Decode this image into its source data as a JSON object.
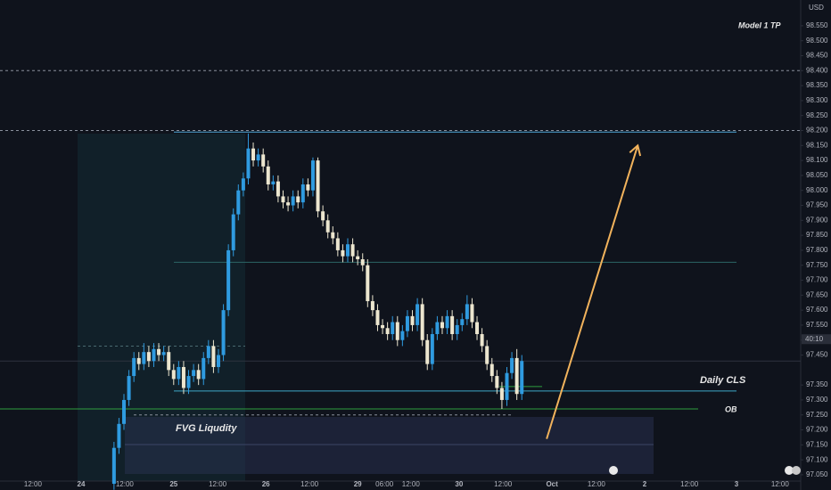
{
  "chart_data": {
    "type": "candlestick",
    "currency": "USD",
    "countdown": "40:10",
    "up_color": "#2f9be0",
    "down_color": "#ece6cf",
    "xlim": [
      -21.2,
      188.1
    ],
    "ylim": [
      97.029,
      98.636
    ],
    "xticks": [
      {
        "value": -12.6,
        "label": "12:00"
      },
      {
        "value": 0,
        "label": "24"
      },
      {
        "value": 11.4,
        "label": "12:00"
      },
      {
        "value": 24.2,
        "label": "25"
      },
      {
        "value": 35.7,
        "label": "12:00"
      },
      {
        "value": 48.3,
        "label": "26"
      },
      {
        "value": 59.7,
        "label": "12:00"
      },
      {
        "value": 72.3,
        "label": "29"
      },
      {
        "value": 79.3,
        "label": "06:00"
      },
      {
        "value": 86.2,
        "label": "12:00"
      },
      {
        "value": 98.8,
        "label": "30"
      },
      {
        "value": 110.3,
        "label": "12:00"
      },
      {
        "value": 123.1,
        "label": "Oct"
      },
      {
        "value": 134.7,
        "label": "12:00"
      },
      {
        "value": 147.3,
        "label": "2"
      },
      {
        "value": 159,
        "label": "12:00"
      },
      {
        "value": 171.3,
        "label": "3"
      },
      {
        "value": 182.7,
        "label": "12:00"
      }
    ],
    "yticks": [
      {
        "value": 97.05,
        "label": "97.050"
      },
      {
        "value": 97.1,
        "label": "97.100"
      },
      {
        "value": 97.15,
        "label": "97.150"
      },
      {
        "value": 97.2,
        "label": "97.200"
      },
      {
        "value": 97.25,
        "label": "97.250"
      },
      {
        "value": 97.3,
        "label": "97.300"
      },
      {
        "value": 97.35,
        "label": "97.350"
      },
      {
        "value": 97.45,
        "label": "97.450"
      },
      {
        "value": 97.5,
        "label": "97.500"
      },
      {
        "value": 97.55,
        "label": "97.550"
      },
      {
        "value": 97.6,
        "label": "97.600"
      },
      {
        "value": 97.65,
        "label": "97.650"
      },
      {
        "value": 97.7,
        "label": "97.700"
      },
      {
        "value": 97.75,
        "label": "97.750"
      },
      {
        "value": 97.8,
        "label": "97.800"
      },
      {
        "value": 97.85,
        "label": "97.850"
      },
      {
        "value": 97.9,
        "label": "97.900"
      },
      {
        "value": 97.95,
        "label": "97.950"
      },
      {
        "value": 98,
        "label": "98.000"
      },
      {
        "value": 98.05,
        "label": "98.050"
      },
      {
        "value": 98.1,
        "label": "98.100"
      },
      {
        "value": 98.15,
        "label": "98.150"
      },
      {
        "value": 98.2,
        "label": "98.200"
      },
      {
        "value": 98.25,
        "label": "98.250"
      },
      {
        "value": 98.3,
        "label": "98.300"
      },
      {
        "value": 98.35,
        "label": "98.350"
      },
      {
        "value": 98.4,
        "label": "98.400"
      },
      {
        "value": 98.45,
        "label": "98.450"
      },
      {
        "value": 98.5,
        "label": "98.500"
      },
      {
        "value": 98.55,
        "label": "98.550"
      }
    ],
    "x": [
      8.6,
      9.9,
      11.2,
      12.5,
      13.8,
      15.1,
      16.4,
      17.7,
      19,
      20.3,
      21.6,
      22.9,
      24.2,
      25.5,
      26.8,
      28.1,
      29.4,
      30.7,
      32,
      33.3,
      34.6,
      35.9,
      37.2,
      38.5,
      39.8,
      41.1,
      42.4,
      43.7,
      45,
      46.3,
      47.6,
      48.9,
      50.2,
      51.5,
      52.8,
      54.1,
      55.4,
      56.7,
      58,
      59.3,
      60.6,
      61.9,
      63.2,
      64.5,
      65.8,
      67.1,
      68.4,
      69.7,
      71,
      72.3,
      73.6,
      74.9,
      76.2,
      77.5,
      78.8,
      80.1,
      81.4,
      82.7,
      84,
      85.3,
      86.6,
      87.9,
      89.2,
      90.5,
      91.8,
      93.1,
      94.4,
      95.7,
      97,
      98.3,
      99.6,
      100.9,
      102.2,
      103.5,
      104.8,
      106.1,
      107.4,
      108.7,
      110,
      111.3,
      112.6,
      113.9,
      115.2
    ],
    "open": [
      97.02,
      97.14,
      97.22,
      97.3,
      97.38,
      97.44,
      97.42,
      97.46,
      97.43,
      97.47,
      97.45,
      97.46,
      97.4,
      97.37,
      97.41,
      97.34,
      97.38,
      97.4,
      97.37,
      97.44,
      97.48,
      97.41,
      97.45,
      97.6,
      97.8,
      97.92,
      98.0,
      98.04,
      98.14,
      98.1,
      98.12,
      98.08,
      98.02,
      98.03,
      97.98,
      97.96,
      97.95,
      97.98,
      97.96,
      98.02,
      98.0,
      98.1,
      97.93,
      97.9,
      97.86,
      97.84,
      97.8,
      97.78,
      97.82,
      97.78,
      97.77,
      97.75,
      97.63,
      97.6,
      97.55,
      97.54,
      97.52,
      97.56,
      97.5,
      97.53,
      97.58,
      97.55,
      97.62,
      97.5,
      97.42,
      97.52,
      97.56,
      97.54,
      97.58,
      97.52,
      97.55,
      97.57,
      97.62,
      97.56,
      97.52,
      97.48,
      97.42,
      97.38,
      97.34,
      97.3,
      97.39,
      97.44,
      97.32
    ],
    "high": [
      97.16,
      97.24,
      97.32,
      97.4,
      97.46,
      97.46,
      97.49,
      97.48,
      97.49,
      97.49,
      97.48,
      97.48,
      97.42,
      97.43,
      97.43,
      97.4,
      97.42,
      97.42,
      97.46,
      97.5,
      97.5,
      97.47,
      97.62,
      97.82,
      97.94,
      98.02,
      98.06,
      98.19,
      98.16,
      98.14,
      98.14,
      98.1,
      98.05,
      98.05,
      98.0,
      97.98,
      98.0,
      98.0,
      98.04,
      98.04,
      98.11,
      98.11,
      97.95,
      97.92,
      97.88,
      97.86,
      97.82,
      97.84,
      97.84,
      97.8,
      97.79,
      97.77,
      97.65,
      97.62,
      97.57,
      97.56,
      97.58,
      97.58,
      97.55,
      97.6,
      97.6,
      97.64,
      97.64,
      97.52,
      97.54,
      97.58,
      97.58,
      97.6,
      97.6,
      97.57,
      97.59,
      97.65,
      97.64,
      97.58,
      97.54,
      97.5,
      97.44,
      97.4,
      97.36,
      97.41,
      97.46,
      97.47,
      97.45
    ],
    "low": [
      97.0,
      97.12,
      97.2,
      97.28,
      97.36,
      97.4,
      97.4,
      97.41,
      97.41,
      97.43,
      97.43,
      97.38,
      97.35,
      97.35,
      97.32,
      97.32,
      97.36,
      97.35,
      97.35,
      97.42,
      97.39,
      97.39,
      97.43,
      97.58,
      97.78,
      97.9,
      97.98,
      98.02,
      98.08,
      98.08,
      98.06,
      98.0,
      98.0,
      97.96,
      97.94,
      97.93,
      97.93,
      97.94,
      97.94,
      97.98,
      97.98,
      97.91,
      97.88,
      97.84,
      97.82,
      97.78,
      97.76,
      97.76,
      97.76,
      97.75,
      97.73,
      97.61,
      97.58,
      97.53,
      97.52,
      97.5,
      97.5,
      97.48,
      97.48,
      97.51,
      97.53,
      97.53,
      97.48,
      97.4,
      97.4,
      97.5,
      97.52,
      97.52,
      97.5,
      97.5,
      97.53,
      97.55,
      97.54,
      97.5,
      97.46,
      97.4,
      97.36,
      97.32,
      97.27,
      97.28,
      97.37,
      97.3,
      97.3
    ],
    "close": [
      97.14,
      97.22,
      97.3,
      97.38,
      97.44,
      97.42,
      97.46,
      97.43,
      97.47,
      97.45,
      97.46,
      97.4,
      97.37,
      97.41,
      97.34,
      97.38,
      97.4,
      97.37,
      97.44,
      97.48,
      97.41,
      97.45,
      97.6,
      97.8,
      97.92,
      98.0,
      98.04,
      98.14,
      98.1,
      98.12,
      98.08,
      98.02,
      98.03,
      97.98,
      97.96,
      97.95,
      97.98,
      97.96,
      98.02,
      98.0,
      98.1,
      97.93,
      97.9,
      97.86,
      97.84,
      97.8,
      97.78,
      97.82,
      97.78,
      97.77,
      97.75,
      97.63,
      97.6,
      97.55,
      97.54,
      97.52,
      97.56,
      97.5,
      97.53,
      97.58,
      97.55,
      97.62,
      97.5,
      97.42,
      97.52,
      97.56,
      97.54,
      97.58,
      97.52,
      97.55,
      97.57,
      97.62,
      97.56,
      97.52,
      97.48,
      97.42,
      97.38,
      97.34,
      97.3,
      97.39,
      97.44,
      97.32,
      97.43
    ],
    "levels": [
      {
        "value": 98.4,
        "color": "#8a909c",
        "dashed": true
      },
      {
        "value": 98.2,
        "color": "#8a909c",
        "dashed": true
      },
      {
        "value": 98.195,
        "color": "#4fa8d8",
        "dashed": false
      },
      {
        "value": 97.76,
        "color": "#2b6666",
        "dashed": false
      },
      {
        "value": 97.43,
        "color": "#2e333e",
        "dashed": false
      },
      {
        "value": 97.33,
        "color": "#3fa8c8",
        "dashed": false
      },
      {
        "value": 97.27,
        "color": "#2e9e3e",
        "dashed": false
      },
      {
        "value": 97.345,
        "color": "#2e9e3e",
        "dashed": false
      },
      {
        "value": 97.25,
        "color": "#8a909c",
        "dashed": true
      },
      {
        "value": 97.48,
        "color": "#4a6a70",
        "dashed": true
      }
    ],
    "arrow": {
      "from": [
        121.7,
        97.17
      ],
      "to": [
        145.5,
        98.15
      ],
      "color": "#f2b35c"
    },
    "annotations": [
      "Model 1 TP",
      "Daily CLS",
      "OB",
      "FVG Liqudity"
    ]
  }
}
